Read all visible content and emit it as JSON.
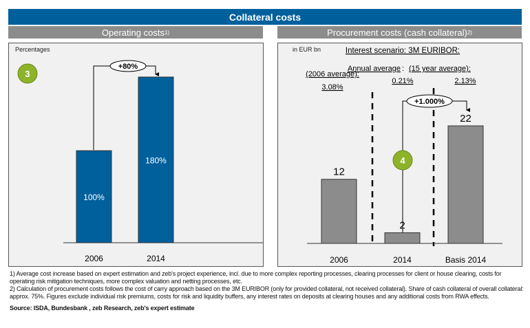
{
  "title": "Collateral costs",
  "left": {
    "header": "Operating costs",
    "header_sup": "1)",
    "unit": "Percentages",
    "badge": "3",
    "change_label": "+80%"
  },
  "right": {
    "header": "Procurement costs (cash collateral)",
    "header_sup": "2)",
    "unit": "in EUR bn",
    "scenario": "Interest scenario: 3M EURIBOR:",
    "col1_label": "(2006 average):",
    "col1_value": "3.08%",
    "col2_label": "Annual average",
    "col2_value": "0.21%",
    "col3_label": "(15 year average):",
    "col3_value": "2.13%",
    "badge": "4",
    "change_label": "+1.000%"
  },
  "colors": {
    "header": "#00609c",
    "subheader": "#8c8c8c",
    "bar_blue": "#00609c",
    "bar_gray": "#8c8c8c",
    "badge": "#8db32a"
  },
  "chart_data": [
    {
      "type": "bar",
      "categories": [
        "2006",
        "2014"
      ],
      "values": [
        100,
        180
      ],
      "value_labels": [
        "100%",
        "180%"
      ],
      "ylabel": "Percentages",
      "ylim": [
        0,
        180
      ]
    },
    {
      "type": "bar",
      "categories": [
        "2006",
        "2014",
        "Basis 2014"
      ],
      "values": [
        12,
        2,
        22
      ],
      "value_labels": [
        "12",
        "2",
        "22"
      ],
      "ylabel": "in EUR bn",
      "ylim": [
        0,
        22
      ]
    }
  ],
  "footnotes": [
    "1) Average cost increase based on expert estimation and zeb's project experience, incl. due to more complex reporting processes, clearing processes for client or house clearing, costs for operating risk mitigation techniques, more complex valuation and netting processes, etc.",
    "2) Calculation of procurement costs follows the cost of carry approach based on the 3M EURIBOR (only for provided collateral, not received collateral). Share of cash collateral of overall collateral: approx. 75%. Figures exclude individual risk premiums, costs for risk and liquidity buffers, any interest rates on deposits at clearing houses and any additional costs from RWA effects."
  ],
  "source": "Source: ISDA, Bundesbank , zeb Research, zeb's expert estimate"
}
